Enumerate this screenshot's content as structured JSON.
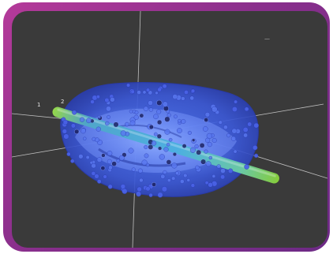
{
  "scene": {
    "axis_labels": [
      "1",
      "2"
    ],
    "corner_mark": "—",
    "colors": {
      "background": "#3a3a3a",
      "frame": "#a4359a",
      "hull_outer": "#3b58d6",
      "hull_inner": "#5f86ff",
      "core": "#8fb6ff",
      "particle": "#4a62e6",
      "particle_dark": "#1a1f5c",
      "rod": "#8ad43a",
      "axis": "#d8d8d8"
    }
  }
}
